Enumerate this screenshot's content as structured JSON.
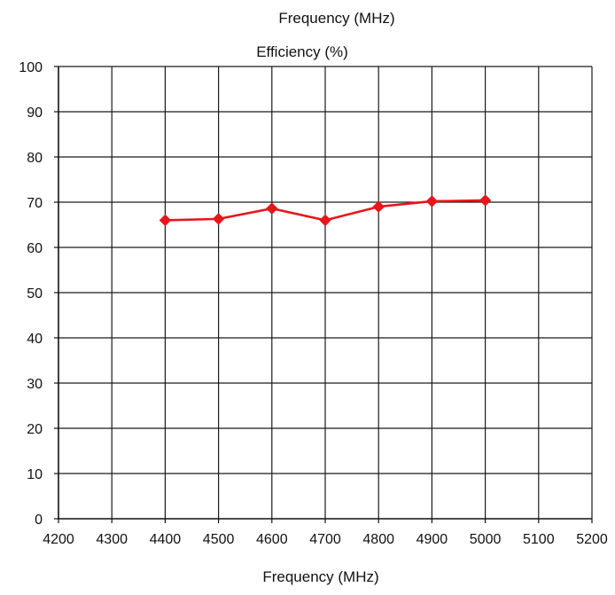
{
  "chart_data": {
    "type": "line",
    "title": "Frequency (MHz)",
    "subtitle": "Efficiency (%)",
    "xlabel": "Frequency (MHz)",
    "ylabel": "",
    "xlim": [
      4200,
      5200
    ],
    "ylim": [
      0,
      100
    ],
    "x_ticks": [
      4200,
      4300,
      4400,
      4500,
      4600,
      4700,
      4800,
      4900,
      5000,
      5100,
      5200
    ],
    "y_ticks": [
      0,
      10,
      20,
      30,
      40,
      50,
      60,
      70,
      80,
      90,
      100
    ],
    "grid": true,
    "legend": "none",
    "series": [
      {
        "color": "#e8151b",
        "marker": "diamond",
        "x": [
          4400,
          4500,
          4600,
          4700,
          4800,
          4900,
          5000
        ],
        "y": [
          66,
          66.3,
          68.6,
          66,
          69,
          70.2,
          70.4
        ]
      }
    ]
  }
}
